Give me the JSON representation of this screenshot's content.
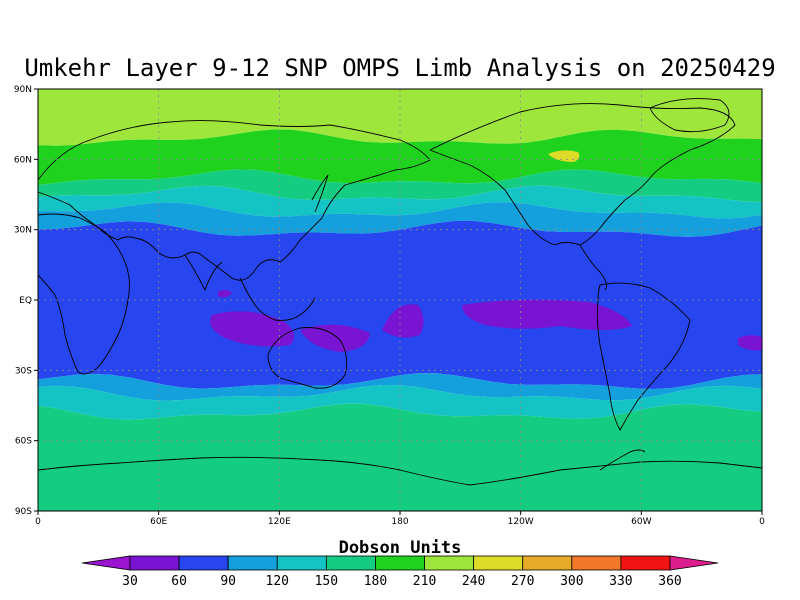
{
  "title": "Umkehr Layer 9-12 SNP OMPS Limb Analysis on 20250429",
  "map": {
    "lat_ticks": [
      "90N",
      "60N",
      "30N",
      "EQ",
      "30S",
      "60S",
      "90S"
    ],
    "lon_ticks": [
      "0",
      "60E",
      "120E",
      "180",
      "120W",
      "60W",
      "0"
    ],
    "bands": [
      {
        "from_lat": 90,
        "to_lat": 69,
        "color": "#9ee63c"
      },
      {
        "from_lat": 69,
        "to_lat": 52,
        "color": "#1ed21e"
      },
      {
        "from_lat": 52,
        "to_lat": 45,
        "color": "#14cc82"
      },
      {
        "from_lat": 45,
        "to_lat": 38,
        "color": "#14c4c4"
      },
      {
        "from_lat": 38,
        "to_lat": 30,
        "color": "#14a0dc"
      },
      {
        "from_lat": 30,
        "to_lat": -35,
        "color": "#2846f0"
      },
      {
        "from_lat": -35,
        "to_lat": -40,
        "color": "#14a0dc"
      },
      {
        "from_lat": -40,
        "to_lat": -48,
        "color": "#14c4c4"
      },
      {
        "from_lat": -48,
        "to_lat": -90,
        "color": "#14cc82"
      }
    ]
  },
  "colorbar": {
    "title": "Dobson Units",
    "labels": [
      "30",
      "60",
      "90",
      "120",
      "150",
      "180",
      "210",
      "240",
      "270",
      "300",
      "330",
      "360"
    ],
    "colors": [
      "#9b14d2",
      "#7814d2",
      "#2846f0",
      "#14a0dc",
      "#14c4c4",
      "#14cc82",
      "#1ed21e",
      "#9ee63c",
      "#dcdc28",
      "#e6aa28",
      "#f07828",
      "#f01414",
      "#dc1e8c"
    ]
  }
}
